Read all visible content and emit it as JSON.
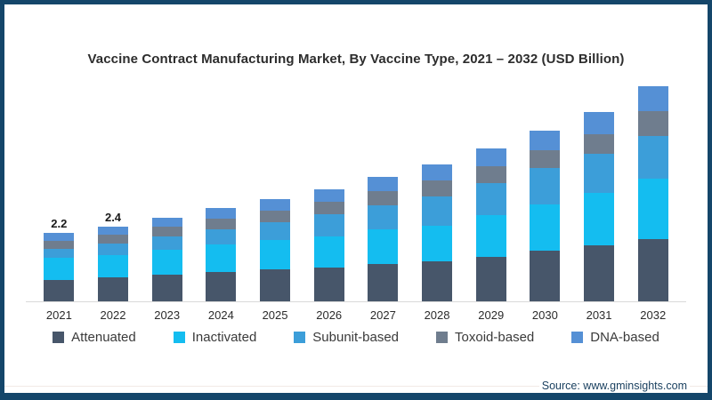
{
  "frame": {
    "border_color": "#14466a",
    "background_color": "#ffffff"
  },
  "chart_data": {
    "type": "bar",
    "stacked": true,
    "title": "Vaccine Contract Manufacturing Market, By Vaccine Type, 2021 – 2032 (USD Billion)",
    "xlabel": "",
    "ylabel": "",
    "unit": "USD Billion",
    "grid": false,
    "legend_position": "bottom",
    "ylim": [
      0,
      7
    ],
    "categories": [
      "2021",
      "2022",
      "2023",
      "2024",
      "2025",
      "2026",
      "2027",
      "2028",
      "2029",
      "2030",
      "2031",
      "2032"
    ],
    "series": [
      {
        "name": "Attenuated",
        "color": "#47566a",
        "values": [
          0.7,
          0.76,
          0.85,
          0.94,
          1.02,
          1.08,
          1.2,
          1.28,
          1.44,
          1.62,
          1.8,
          2.0
        ]
      },
      {
        "name": "Inactivated",
        "color": "#14bdf0",
        "values": [
          0.7,
          0.72,
          0.8,
          0.88,
          0.96,
          1.02,
          1.12,
          1.16,
          1.32,
          1.5,
          1.7,
          1.95
        ]
      },
      {
        "name": "Subunit-based",
        "color": "#3c9ed9",
        "values": [
          0.3,
          0.38,
          0.44,
          0.5,
          0.57,
          0.69,
          0.78,
          0.94,
          1.04,
          1.16,
          1.24,
          1.35
        ]
      },
      {
        "name": "Toxoid-based",
        "color": "#6f7d8e",
        "values": [
          0.25,
          0.27,
          0.3,
          0.34,
          0.37,
          0.4,
          0.44,
          0.52,
          0.55,
          0.58,
          0.64,
          0.8
        ]
      },
      {
        "name": "DNA-based",
        "color": "#5590d5",
        "values": [
          0.25,
          0.27,
          0.31,
          0.34,
          0.38,
          0.41,
          0.46,
          0.5,
          0.55,
          0.64,
          0.72,
          0.8
        ]
      }
    ],
    "totals": [
      2.2,
      2.4,
      2.7,
      3.0,
      3.3,
      3.6,
      4.0,
      4.4,
      4.9,
      5.5,
      6.1,
      6.9
    ],
    "data_labels": {
      "2021": "2.2",
      "2022": "2.4"
    }
  },
  "source_text": "Source: www.gminsights.com"
}
